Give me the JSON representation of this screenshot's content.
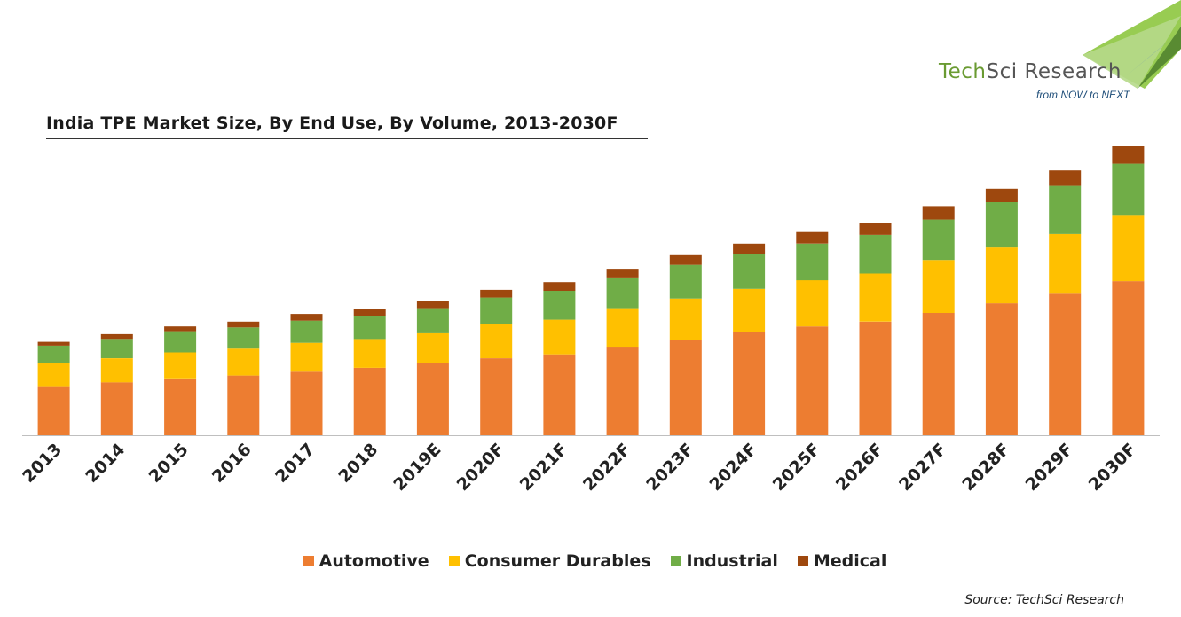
{
  "logo": {
    "name_first": "Tech",
    "name_rest": "Sci Research",
    "tagline": "from NOW to NEXT"
  },
  "chart_data": {
    "type": "bar",
    "stacked": true,
    "title": "India TPE Market Size, By End Use, By Volume, 2013-2030F",
    "xlabel": "",
    "ylabel": "",
    "categories": [
      "2013",
      "2014",
      "2015",
      "2016",
      "2017",
      "2018",
      "2019E",
      "2020F",
      "2021F",
      "2022F",
      "2023F",
      "2024F",
      "2025F",
      "2026F",
      "2027F",
      "2028F",
      "2029F",
      "2030F"
    ],
    "ylim": [
      0,
      300
    ],
    "series": [
      {
        "name": "Automotive",
        "color": "#ED7D31",
        "values": [
          51,
          55,
          59,
          62,
          66,
          70,
          75,
          80,
          84,
          92,
          99,
          107,
          113,
          118,
          127,
          137,
          147,
          160
        ]
      },
      {
        "name": "Consumer Durables",
        "color": "#FFC000",
        "values": [
          24,
          25,
          27,
          28,
          30,
          30,
          31,
          35,
          36,
          40,
          43,
          45,
          48,
          50,
          55,
          58,
          62,
          68
        ]
      },
      {
        "name": "Industrial",
        "color": "#70AD47",
        "values": [
          18,
          20,
          22,
          22,
          23,
          24,
          26,
          28,
          30,
          31,
          35,
          36,
          38,
          40,
          42,
          47,
          50,
          54
        ]
      },
      {
        "name": "Medical",
        "color": "#9E480E",
        "values": [
          4,
          5,
          5,
          6,
          7,
          7,
          7,
          8,
          9,
          9,
          10,
          11,
          12,
          12,
          14,
          14,
          16,
          18
        ]
      }
    ],
    "grid": false,
    "legend_position": "bottom"
  },
  "source": "Source: TechSci Research"
}
